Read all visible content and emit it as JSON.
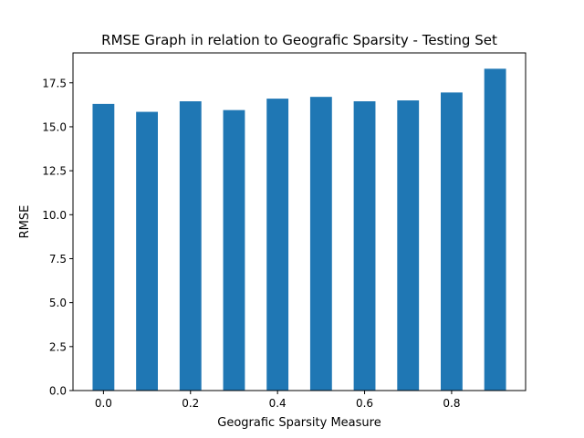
{
  "chart_data": {
    "type": "bar",
    "title": "RMSE Graph in relation to Geografic Sparsity - Testing Set",
    "xlabel": "Geografic Sparsity Measure",
    "ylabel": "RMSE",
    "x": [
      0.0,
      0.1,
      0.2,
      0.3,
      0.4,
      0.5,
      0.6,
      0.7,
      0.8,
      0.9
    ],
    "values": [
      16.3,
      15.85,
      16.45,
      15.95,
      16.6,
      16.7,
      16.45,
      16.5,
      16.95,
      18.3
    ],
    "bar_width": 0.05,
    "xlim": [
      -0.07,
      0.97
    ],
    "ylim": [
      0,
      19.2
    ],
    "xticks": [
      0.0,
      0.2,
      0.4,
      0.6,
      0.8
    ],
    "xtick_labels": [
      "0.0",
      "0.2",
      "0.4",
      "0.6",
      "0.8"
    ],
    "yticks": [
      0.0,
      2.5,
      5.0,
      7.5,
      10.0,
      12.5,
      15.0,
      17.5
    ],
    "ytick_labels": [
      "0.0",
      "2.5",
      "5.0",
      "7.5",
      "10.0",
      "12.5",
      "15.0",
      "17.5"
    ],
    "bar_color": "#1f77b4",
    "grid": false,
    "legend": "none"
  }
}
